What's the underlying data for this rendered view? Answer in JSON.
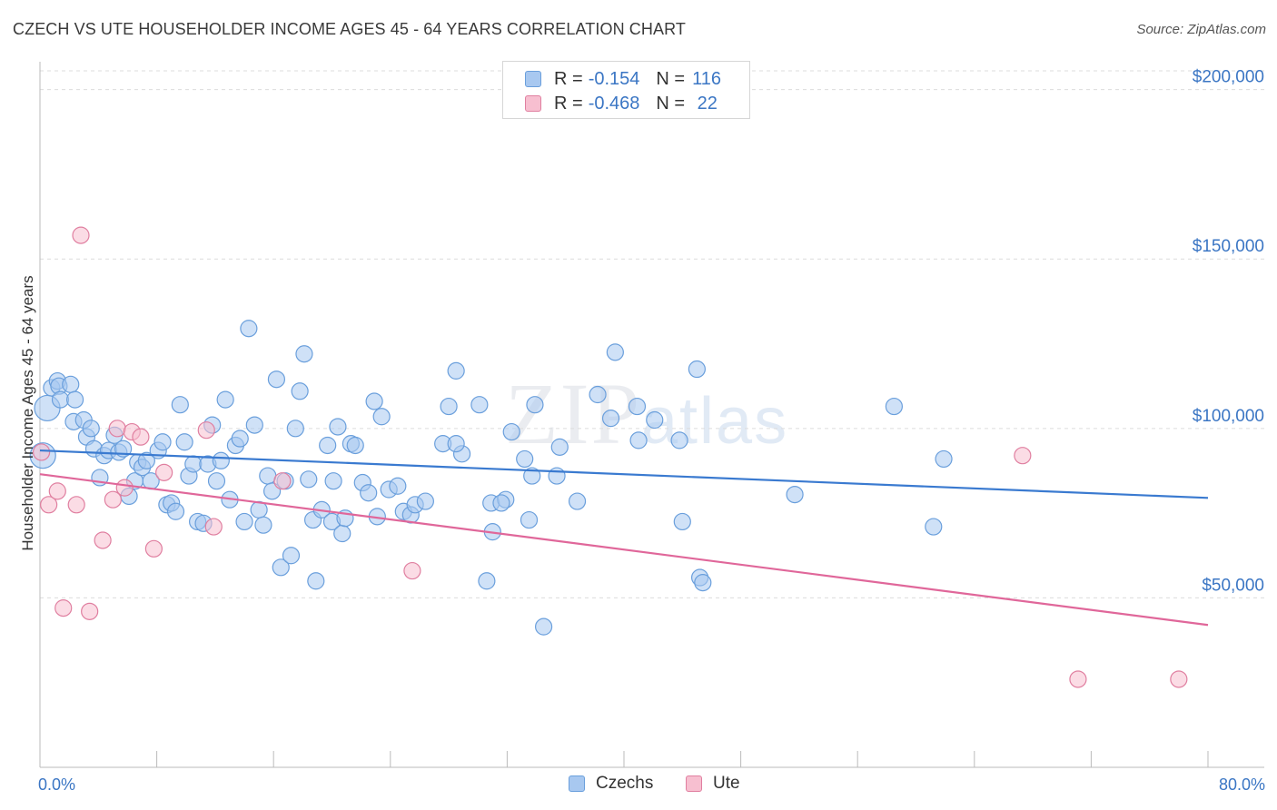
{
  "title": "CZECH VS UTE HOUSEHOLDER INCOME AGES 45 - 64 YEARS CORRELATION CHART",
  "source": "Source: ZipAtlas.com",
  "watermark": {
    "zip": "ZIP",
    "atlas": "atlas"
  },
  "legend": {
    "rows": [
      {
        "r_label": "R =",
        "r_value": "-0.154",
        "n_label": "N =",
        "n_value": "116",
        "color": "#a8c8f0",
        "border": "#6a9fdc"
      },
      {
        "r_label": "R =",
        "r_value": "-0.468",
        "n_label": "N =",
        "n_value": " 22",
        "color": "#f7bfd0",
        "border": "#e07fa0"
      }
    ]
  },
  "bottom_legend": [
    {
      "label": "Czechs",
      "color": "#a8c8f0",
      "border": "#6a9fdc"
    },
    {
      "label": "Ute",
      "color": "#f7bfd0",
      "border": "#e07fa0"
    }
  ],
  "chart_data": {
    "type": "scatter",
    "xlabel": "",
    "ylabel": "Householder Income Ages 45 - 64 years",
    "x_tick_labels": [
      "0.0%",
      "80.0%"
    ],
    "y_tick_labels": [
      "$50,000",
      "$100,000",
      "$150,000",
      "$200,000"
    ],
    "y_ticks": [
      50000,
      100000,
      150000,
      200000
    ],
    "xlim": [
      0,
      80
    ],
    "ylim": [
      0,
      205000
    ],
    "grid": true,
    "series": [
      {
        "name": "Czechs",
        "color": "#6a9fdc",
        "fill": "#a8c8f0",
        "trend": {
          "x": [
            0,
            80
          ],
          "y": [
            93500,
            79500
          ],
          "color": "#3a7ad0"
        },
        "points": [
          [
            0.2,
            92000
          ],
          [
            0.5,
            106000
          ],
          [
            0.8,
            112000
          ],
          [
            1.2,
            114000
          ],
          [
            1.3,
            112500
          ],
          [
            1.4,
            108500
          ],
          [
            2.1,
            113000
          ],
          [
            2.3,
            102000
          ],
          [
            2.4,
            108500
          ],
          [
            3.0,
            102500
          ],
          [
            3.2,
            97500
          ],
          [
            3.5,
            100000
          ],
          [
            3.7,
            94000
          ],
          [
            4.1,
            85500
          ],
          [
            4.4,
            92000
          ],
          [
            4.7,
            93500
          ],
          [
            5.1,
            98000
          ],
          [
            5.4,
            93000
          ],
          [
            5.7,
            94000
          ],
          [
            6.1,
            80000
          ],
          [
            6.5,
            84500
          ],
          [
            6.7,
            90000
          ],
          [
            7.0,
            88500
          ],
          [
            7.3,
            90500
          ],
          [
            7.6,
            84500
          ],
          [
            8.1,
            93500
          ],
          [
            8.4,
            96000
          ],
          [
            8.7,
            77500
          ],
          [
            9.0,
            78000
          ],
          [
            9.3,
            75500
          ],
          [
            9.6,
            107000
          ],
          [
            9.9,
            96000
          ],
          [
            10.2,
            86000
          ],
          [
            10.5,
            89500
          ],
          [
            10.8,
            72500
          ],
          [
            11.2,
            72000
          ],
          [
            11.5,
            89500
          ],
          [
            11.8,
            101000
          ],
          [
            12.1,
            84500
          ],
          [
            12.4,
            90500
          ],
          [
            12.7,
            108500
          ],
          [
            13.0,
            79000
          ],
          [
            13.4,
            95000
          ],
          [
            13.7,
            97000
          ],
          [
            14.0,
            72500
          ],
          [
            14.3,
            129500
          ],
          [
            14.7,
            101000
          ],
          [
            15.0,
            76000
          ],
          [
            15.3,
            71500
          ],
          [
            15.6,
            86000
          ],
          [
            15.9,
            81500
          ],
          [
            16.2,
            114500
          ],
          [
            16.5,
            59000
          ],
          [
            16.8,
            84500
          ],
          [
            17.2,
            62500
          ],
          [
            17.5,
            100000
          ],
          [
            17.8,
            111000
          ],
          [
            18.1,
            122000
          ],
          [
            18.4,
            85000
          ],
          [
            18.7,
            73000
          ],
          [
            18.9,
            55000
          ],
          [
            19.3,
            76000
          ],
          [
            19.7,
            95000
          ],
          [
            20.0,
            72500
          ],
          [
            20.4,
            100500
          ],
          [
            20.7,
            69000
          ],
          [
            20.9,
            73500
          ],
          [
            21.3,
            95500
          ],
          [
            21.6,
            95000
          ],
          [
            22.1,
            84000
          ],
          [
            22.5,
            81000
          ],
          [
            22.9,
            108000
          ],
          [
            23.1,
            74000
          ],
          [
            23.4,
            103500
          ],
          [
            23.9,
            82000
          ],
          [
            24.5,
            83000
          ],
          [
            24.9,
            75500
          ],
          [
            25.4,
            74500
          ],
          [
            25.7,
            77500
          ],
          [
            26.4,
            78500
          ],
          [
            27.6,
            95500
          ],
          [
            28.0,
            106500
          ],
          [
            28.5,
            117000
          ],
          [
            28.9,
            92500
          ],
          [
            28.5,
            95500
          ],
          [
            30.1,
            107000
          ],
          [
            30.6,
            55000
          ],
          [
            30.9,
            78000
          ],
          [
            31.0,
            69500
          ],
          [
            31.9,
            79000
          ],
          [
            31.6,
            78000
          ],
          [
            32.3,
            99000
          ],
          [
            33.2,
            91000
          ],
          [
            33.5,
            73000
          ],
          [
            33.7,
            86000
          ],
          [
            33.9,
            107000
          ],
          [
            35.4,
            86000
          ],
          [
            35.6,
            94500
          ],
          [
            36.8,
            78500
          ],
          [
            38.2,
            110000
          ],
          [
            39.1,
            103000
          ],
          [
            39.4,
            122500
          ],
          [
            40.9,
            106500
          ],
          [
            42.1,
            102500
          ],
          [
            44.0,
            72500
          ],
          [
            45.0,
            117500
          ],
          [
            45.2,
            56000
          ],
          [
            45.4,
            54500
          ],
          [
            41.0,
            96500
          ],
          [
            43.8,
            96500
          ],
          [
            51.7,
            80500
          ],
          [
            58.5,
            106500
          ],
          [
            61.2,
            71000
          ],
          [
            61.9,
            91000
          ],
          [
            20.1,
            84500
          ],
          [
            34.5,
            41500
          ]
        ]
      },
      {
        "name": "Ute",
        "color": "#e07fa0",
        "fill": "#f7bfd0",
        "trend": {
          "x": [
            0,
            80
          ],
          "y": [
            86500,
            42000
          ],
          "color": "#e0679a"
        },
        "points": [
          [
            0.6,
            77500
          ],
          [
            1.2,
            81500
          ],
          [
            1.6,
            47000
          ],
          [
            2.5,
            77500
          ],
          [
            2.8,
            157000
          ],
          [
            3.4,
            46000
          ],
          [
            4.3,
            67000
          ],
          [
            5.0,
            79000
          ],
          [
            5.3,
            100000
          ],
          [
            5.8,
            82500
          ],
          [
            6.3,
            99000
          ],
          [
            6.9,
            97500
          ],
          [
            7.8,
            64500
          ],
          [
            8.5,
            87000
          ],
          [
            11.4,
            99500
          ],
          [
            11.9,
            71000
          ],
          [
            16.6,
            84500
          ],
          [
            25.5,
            58000
          ],
          [
            67.3,
            92000
          ],
          [
            71.1,
            26000
          ],
          [
            78.0,
            26000
          ],
          [
            0.1,
            93000
          ]
        ]
      }
    ]
  }
}
